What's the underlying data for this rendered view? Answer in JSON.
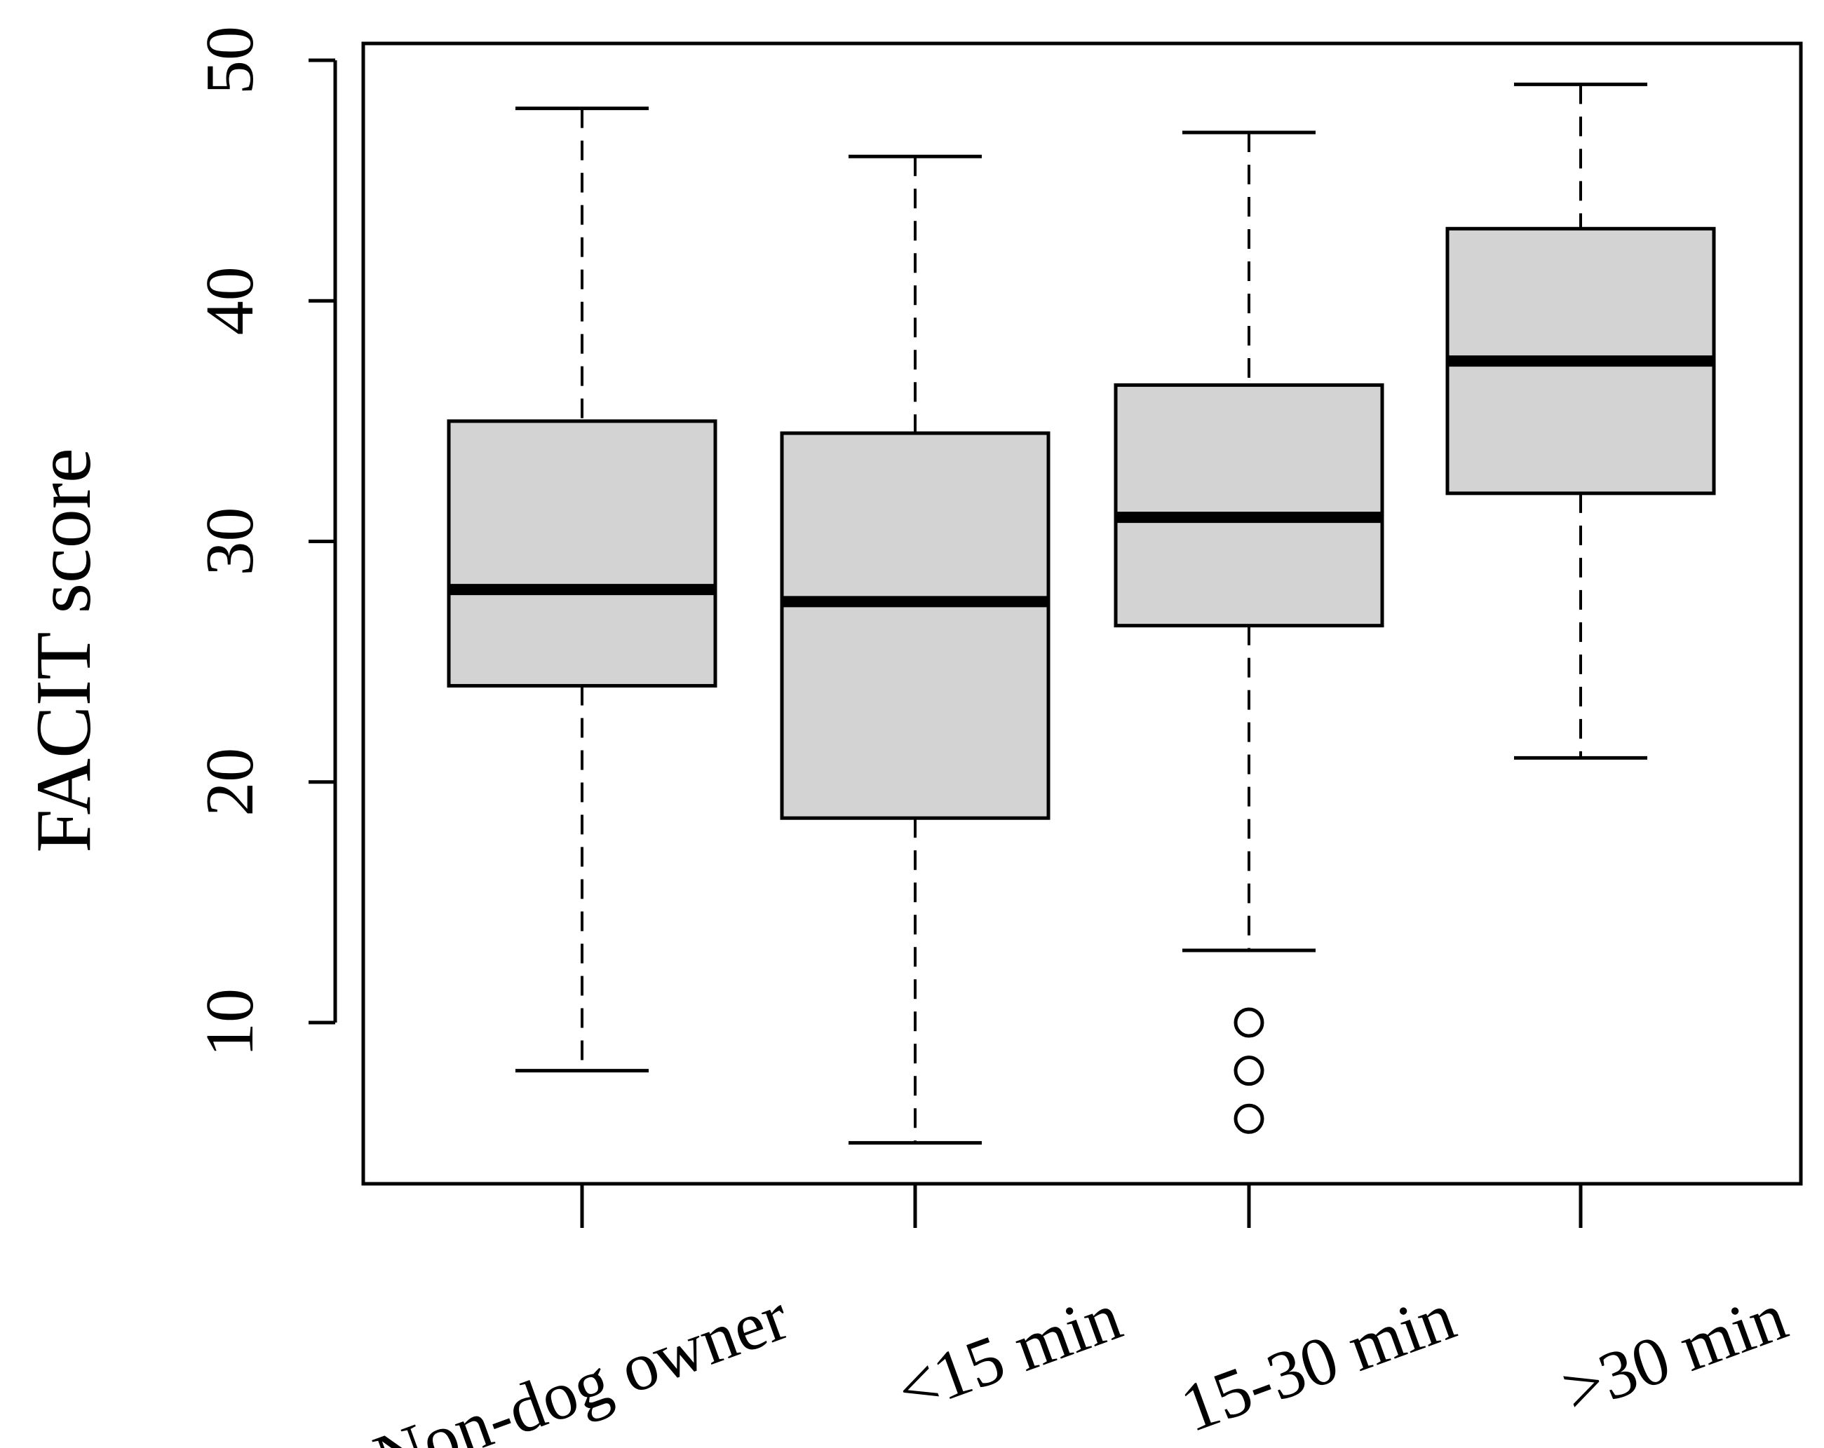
{
  "chart_data": {
    "type": "boxplot",
    "title": "",
    "xlabel": "",
    "ylabel": "FACIT score",
    "ylim": [
      3,
      51
    ],
    "yticks": [
      10,
      20,
      30,
      40,
      50
    ],
    "grid": false,
    "categories": [
      "Non-dog owner",
      "<15 min",
      "15-30 min",
      ">30 min"
    ],
    "boxes": [
      {
        "category": "Non-dog owner",
        "whisker_low": 8,
        "q1": 24,
        "median": 28,
        "q3": 35,
        "whisker_high": 48,
        "outliers": []
      },
      {
        "category": "<15 min",
        "whisker_low": 5,
        "q1": 18.5,
        "median": 27.5,
        "q3": 34.5,
        "whisker_high": 46,
        "outliers": []
      },
      {
        "category": "15-30 min",
        "whisker_low": 13,
        "q1": 26.5,
        "median": 31,
        "q3": 36.5,
        "whisker_high": 47,
        "outliers": [
          6,
          8,
          10
        ]
      },
      {
        "category": ">30 min",
        "whisker_low": 21,
        "q1": 32,
        "median": 37.5,
        "q3": 43,
        "whisker_high": 49,
        "outliers": []
      }
    ],
    "colors": {
      "box_fill": "#d3d3d3",
      "line": "#000000"
    }
  }
}
